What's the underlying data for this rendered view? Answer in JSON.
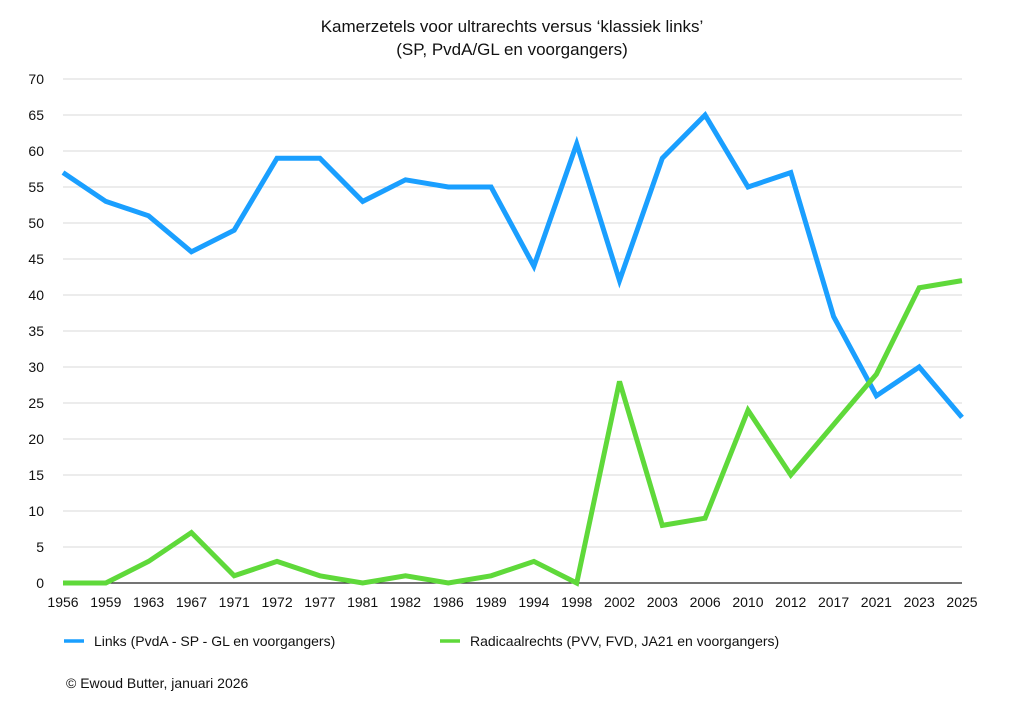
{
  "chart_data": {
    "type": "line",
    "title": "Kamerzetels voor ultrarechts versus ‘klassiek links’",
    "subtitle": "(SP, PvdA/GL en voorgangers)",
    "xlabel": "",
    "ylabel": "",
    "ylim": [
      0,
      70
    ],
    "yticks": [
      0,
      5,
      10,
      15,
      20,
      25,
      30,
      35,
      40,
      45,
      50,
      55,
      60,
      65,
      70
    ],
    "grid": true,
    "legend_position": "bottom",
    "categories": [
      "1956",
      "1959",
      "1963",
      "1967",
      "1971",
      "1972",
      "1977",
      "1981",
      "1982",
      "1986",
      "1989",
      "1994",
      "1998",
      "2002",
      "2003",
      "2006",
      "2010",
      "2012",
      "2017",
      "2021",
      "2023",
      "2025"
    ],
    "series": [
      {
        "name": "Links (PvdA - SP - GL en voorgangers)",
        "color": "#1a9fff",
        "values": [
          57,
          53,
          51,
          46,
          49,
          59,
          59,
          53,
          56,
          55,
          55,
          44,
          61,
          42,
          59,
          65,
          55,
          57,
          37,
          26,
          30,
          23
        ]
      },
      {
        "name": "Radicaalrechts (PVV, FVD, JA21 en voorgangers)",
        "color": "#5fd93a",
        "values": [
          0,
          0,
          3,
          7,
          1,
          3,
          1,
          0,
          1,
          0,
          1,
          3,
          0,
          28,
          8,
          9,
          24,
          15,
          22,
          29,
          41,
          42
        ]
      }
    ]
  },
  "credit": "© Ewoud Butter, januari 2026"
}
